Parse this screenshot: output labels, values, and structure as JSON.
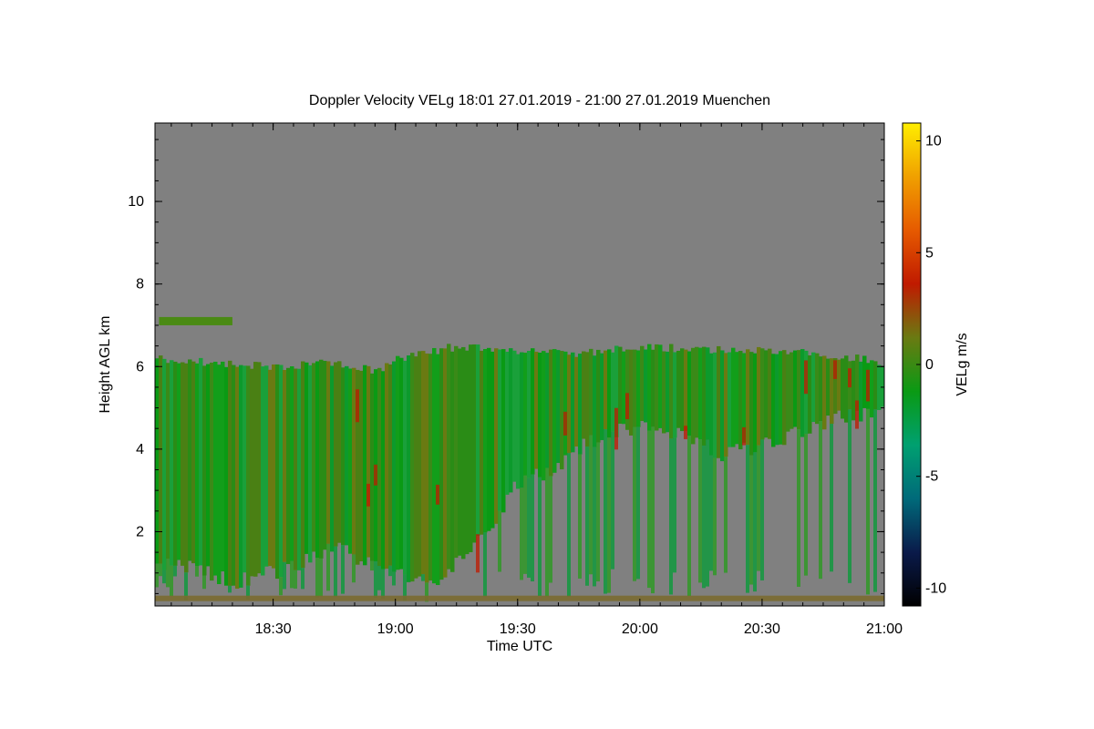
{
  "chart_data": {
    "type": "heatmap",
    "title": "Doppler Velocity VELg   18:01 27.01.2019 - 21:00 27.01.2019 Muenchen",
    "xlabel": "Time UTC",
    "ylabel": "Height AGL km",
    "colorbar_label": "VELg m/s",
    "x_ticks": [
      "18:30",
      "19:00",
      "19:30",
      "20:00",
      "20:30",
      "21:00"
    ],
    "x_tick_values": [
      "18:30",
      "19:00",
      "19:30",
      "20:00",
      "20:30",
      "21:00"
    ],
    "xlim": [
      "18:01",
      "21:00"
    ],
    "y_ticks": [
      2,
      4,
      6,
      8,
      10
    ],
    "ylim": [
      0.2,
      11.9
    ],
    "colorbar_ticks": [
      10,
      5,
      0,
      -5,
      -10
    ],
    "zlim": [
      -10.8,
      10.8
    ],
    "colormap": [
      "#000000",
      "#0a1a4a",
      "#006a7a",
      "#00a070",
      "#0a9a14",
      "#6a7a12",
      "#c01a00",
      "#e65a00",
      "#f0a000",
      "#ffee00"
    ],
    "background_color": "#808080",
    "echo_top_km": [
      [
        "18:01",
        6.2
      ],
      [
        "18:15",
        6.1
      ],
      [
        "18:30",
        6.0
      ],
      [
        "18:45",
        6.1
      ],
      [
        "18:55",
        5.9
      ],
      [
        "19:00",
        6.2
      ],
      [
        "19:15",
        6.5
      ],
      [
        "19:30",
        6.4
      ],
      [
        "19:45",
        6.3
      ],
      [
        "20:00",
        6.5
      ],
      [
        "20:15",
        6.4
      ],
      [
        "20:30",
        6.4
      ],
      [
        "20:45",
        6.3
      ],
      [
        "21:00",
        6.1
      ]
    ],
    "cloud_base_km": [
      [
        "18:01",
        1.2
      ],
      [
        "18:10",
        1.1
      ],
      [
        "18:20",
        0.8
      ],
      [
        "18:30",
        1.0
      ],
      [
        "18:45",
        1.6
      ],
      [
        "18:55",
        1.2
      ],
      [
        "19:00",
        1.0
      ],
      [
        "19:10",
        0.9
      ],
      [
        "19:20",
        1.8
      ],
      [
        "19:30",
        3.2
      ],
      [
        "19:40",
        3.6
      ],
      [
        "19:50",
        4.4
      ],
      [
        "20:00",
        4.5
      ],
      [
        "20:10",
        4.3
      ],
      [
        "20:20",
        3.9
      ],
      [
        "20:30",
        4.1
      ],
      [
        "20:40",
        4.5
      ],
      [
        "20:50",
        4.8
      ],
      [
        "21:00",
        4.9
      ]
    ],
    "upper_layer": {
      "x_start": "18:02",
      "x_end": "18:20",
      "height_km": 7.1
    },
    "annotations": []
  }
}
